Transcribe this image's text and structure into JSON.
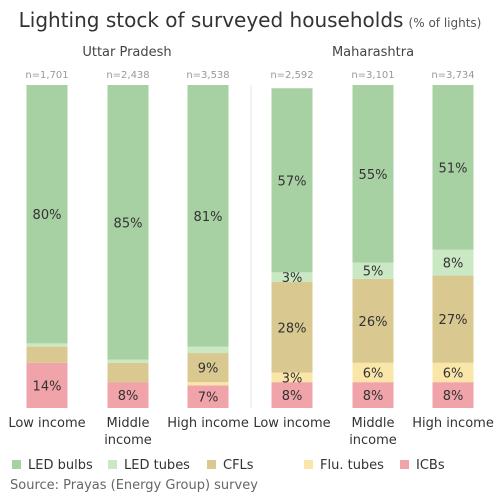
{
  "chart_data": {
    "type": "bar",
    "stacked": true,
    "title": "Lighting stock of surveyed households",
    "subtitle": "(% of lights)",
    "source": "Source: Prayas (Energy Group) survey",
    "ylim": [
      0,
      100
    ],
    "grid": false,
    "legend_position": "bottom",
    "series_order_bottom_to_top": [
      "ICBs",
      "Flu. tubes",
      "CFLs",
      "LED tubes",
      "LED bulbs"
    ],
    "legend": [
      {
        "name": "LED bulbs",
        "color": "#a8d1a3"
      },
      {
        "name": "LED tubes",
        "color": "#c9e8c3"
      },
      {
        "name": "CFLs",
        "color": "#d9c88f"
      },
      {
        "name": "Flu. tubes",
        "color": "#fae6a9"
      },
      {
        "name": "ICBs",
        "color": "#f0a3a8"
      }
    ],
    "panels": [
      {
        "state": "Uttar Pradesh",
        "bars": [
          {
            "category": "Low income",
            "n": "n=1,701",
            "segments": [
              {
                "series": "ICBs",
                "value": 14,
                "label": "14%"
              },
              {
                "series": "Flu. tubes",
                "value": 0,
                "label": ""
              },
              {
                "series": "CFLs",
                "value": 5,
                "label": ""
              },
              {
                "series": "LED tubes",
                "value": 1,
                "label": ""
              },
              {
                "series": "LED bulbs",
                "value": 80,
                "label": "80%"
              }
            ]
          },
          {
            "category": "Middle income",
            "n": "n=2,438",
            "segments": [
              {
                "series": "ICBs",
                "value": 8,
                "label": "8%"
              },
              {
                "series": "Flu. tubes",
                "value": 0,
                "label": ""
              },
              {
                "series": "CFLs",
                "value": 6,
                "label": ""
              },
              {
                "series": "LED tubes",
                "value": 1,
                "label": ""
              },
              {
                "series": "LED bulbs",
                "value": 85,
                "label": "85%"
              }
            ]
          },
          {
            "category": "High income",
            "n": "n=3,538",
            "segments": [
              {
                "series": "ICBs",
                "value": 7,
                "label": "7%"
              },
              {
                "series": "Flu. tubes",
                "value": 1,
                "label": ""
              },
              {
                "series": "CFLs",
                "value": 9,
                "label": "9%"
              },
              {
                "series": "LED tubes",
                "value": 2,
                "label": ""
              },
              {
                "series": "LED bulbs",
                "value": 81,
                "label": "81%"
              }
            ]
          }
        ]
      },
      {
        "state": "Maharashtra",
        "bars": [
          {
            "category": "Low income",
            "n": "n=2,592",
            "segments": [
              {
                "series": "ICBs",
                "value": 8,
                "label": "8%"
              },
              {
                "series": "Flu. tubes",
                "value": 3,
                "label": "3%"
              },
              {
                "series": "CFLs",
                "value": 28,
                "label": "28%"
              },
              {
                "series": "LED tubes",
                "value": 3,
                "label": "3%"
              },
              {
                "series": "LED bulbs",
                "value": 57,
                "label": "57%"
              }
            ]
          },
          {
            "category": "Middle income",
            "n": "n=3,101",
            "segments": [
              {
                "series": "ICBs",
                "value": 8,
                "label": "8%"
              },
              {
                "series": "Flu. tubes",
                "value": 6,
                "label": "6%"
              },
              {
                "series": "CFLs",
                "value": 26,
                "label": "26%"
              },
              {
                "series": "LED tubes",
                "value": 5,
                "label": "5%"
              },
              {
                "series": "LED bulbs",
                "value": 55,
                "label": "55%"
              }
            ]
          },
          {
            "category": "High income",
            "n": "n=3,734",
            "segments": [
              {
                "series": "ICBs",
                "value": 8,
                "label": "8%"
              },
              {
                "series": "Flu. tubes",
                "value": 6,
                "label": "6%"
              },
              {
                "series": "CFLs",
                "value": 27,
                "label": "27%"
              },
              {
                "series": "LED tubes",
                "value": 8,
                "label": "8%"
              },
              {
                "series": "LED bulbs",
                "value": 51,
                "label": "51%"
              }
            ]
          }
        ]
      }
    ]
  }
}
